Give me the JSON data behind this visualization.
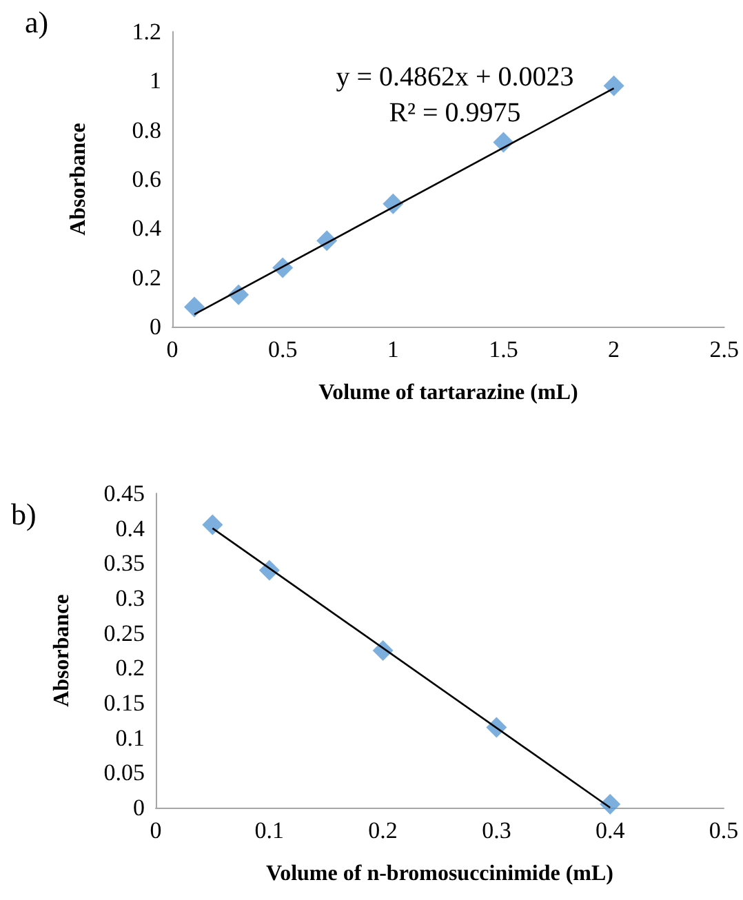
{
  "chart_data": [
    {
      "type": "scatter",
      "xlabel": "Volume of tartarazine (mL)",
      "ylabel": "Absorbance",
      "annotations": [
        "a)",
        "y = 0.4862x + 0.0023",
        "R² = 0.9975"
      ],
      "marker": "diamond",
      "grid": false,
      "series": [
        {
          "color": "#5b9bd5",
          "x": [
            0.1,
            0.3,
            0.5,
            0.7,
            1,
            1.5,
            2
          ],
          "values": [
            0.08,
            0.13,
            0.24,
            0.35,
            0.5,
            0.75,
            0.98
          ]
        },
        {
          "type": "line",
          "color": "#000000",
          "marker": "none",
          "line_style": "solid",
          "x": [
            0.1,
            2
          ],
          "values": [
            0.05,
            0.97
          ]
        }
      ],
      "xlim": [
        0,
        2.5
      ],
      "xticks": [
        0,
        0.5,
        1,
        1.5,
        2,
        2.5
      ],
      "ylim": [
        0,
        1.2
      ],
      "yticks": [
        0,
        0.2,
        0.4,
        0.6,
        0.8,
        1,
        1.2
      ]
    },
    {
      "type": "scatter",
      "xlabel": "Volume of n-bromosuccinimide (mL)",
      "ylabel": "Absorbance",
      "annotations": [
        "b)"
      ],
      "marker": "diamond",
      "grid": false,
      "series": [
        {
          "color": "#5b9bd5",
          "x": [
            0.05,
            0.1,
            0.2,
            0.3,
            0.4
          ],
          "values": [
            0.405,
            0.34,
            0.225,
            0.115,
            0.005
          ]
        },
        {
          "type": "line",
          "color": "#000000",
          "marker": "none",
          "line_style": "solid",
          "x": [
            0.05,
            0.4
          ],
          "values": [
            0.4,
            0.0
          ]
        }
      ],
      "xlim": [
        0,
        0.5
      ],
      "xticks": [
        0,
        0.1,
        0.2,
        0.3,
        0.4,
        0.5
      ],
      "ylim": [
        0,
        0.45
      ],
      "yticks": [
        0,
        0.05,
        0.1,
        0.15,
        0.2,
        0.25,
        0.3,
        0.35,
        0.4,
        0.45
      ]
    }
  ]
}
